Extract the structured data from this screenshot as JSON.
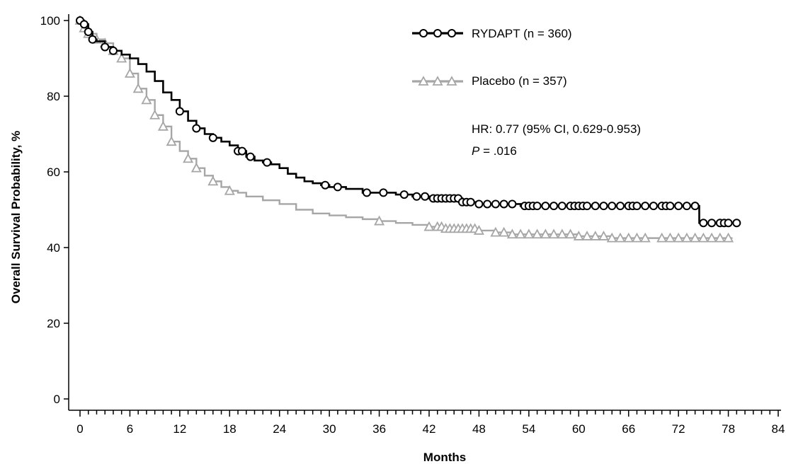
{
  "chart_data": {
    "type": "line",
    "title": "",
    "xlabel": "Months",
    "ylabel": "Overall Survival Probability, %",
    "xlim": [
      0,
      84
    ],
    "ylim": [
      0,
      100
    ],
    "xticks": [
      0,
      6,
      12,
      18,
      24,
      30,
      36,
      42,
      48,
      54,
      60,
      66,
      72,
      78,
      84
    ],
    "yticks": [
      0,
      20,
      40,
      60,
      80,
      100
    ],
    "grid": false,
    "legend_position": "top-right",
    "series": [
      {
        "name": "RYDAPT (n = 360)",
        "color": "#000000",
        "marker": "circle",
        "step_points": [
          [
            0,
            100
          ],
          [
            0.5,
            99
          ],
          [
            1,
            97
          ],
          [
            1.5,
            95
          ],
          [
            2,
            94.5
          ],
          [
            3,
            93
          ],
          [
            4,
            92
          ],
          [
            5,
            91
          ],
          [
            6,
            90
          ],
          [
            7,
            88.5
          ],
          [
            8,
            86.5
          ],
          [
            9,
            84
          ],
          [
            10,
            81
          ],
          [
            11,
            79
          ],
          [
            12,
            76
          ],
          [
            13,
            73.5
          ],
          [
            14,
            71.5
          ],
          [
            15,
            70
          ],
          [
            16,
            69
          ],
          [
            17,
            68
          ],
          [
            18,
            67
          ],
          [
            19,
            65.5
          ],
          [
            20,
            64
          ],
          [
            21,
            63
          ],
          [
            22,
            62.5
          ],
          [
            23,
            62
          ],
          [
            24,
            61
          ],
          [
            25,
            59.5
          ],
          [
            26,
            58.5
          ],
          [
            27,
            57.5
          ],
          [
            28,
            57
          ],
          [
            29,
            56.5
          ],
          [
            30,
            56
          ],
          [
            32,
            55.5
          ],
          [
            34,
            54.5
          ],
          [
            36,
            54.5
          ],
          [
            38,
            54
          ],
          [
            40,
            53.5
          ],
          [
            42,
            53
          ],
          [
            44,
            53
          ],
          [
            46,
            52
          ],
          [
            48,
            51.5
          ],
          [
            50,
            51.5
          ],
          [
            52,
            51.5
          ],
          [
            53,
            51
          ],
          [
            60,
            51
          ],
          [
            70,
            51
          ],
          [
            74.5,
            51
          ],
          [
            74.5,
            46.5
          ],
          [
            79,
            46.5
          ]
        ],
        "censor_x": [
          0,
          0.5,
          1,
          1.5,
          3,
          4,
          12,
          14,
          16,
          19,
          19.5,
          20.5,
          22.5,
          29.5,
          31,
          34.5,
          36.5,
          39,
          40.5,
          41.5,
          42.5,
          43,
          43.5,
          44,
          44.5,
          45,
          45.5,
          46,
          46.5,
          47,
          48,
          49,
          50,
          51,
          52,
          53.5,
          54,
          54.5,
          55,
          56,
          57,
          58,
          59,
          59.5,
          60,
          60.5,
          61,
          62,
          63,
          64,
          65,
          66,
          66.5,
          67,
          68,
          69,
          70,
          70.5,
          71,
          72,
          73,
          74,
          75,
          76,
          77,
          77.5,
          78,
          79
        ]
      },
      {
        "name": "Placebo (n = 357)",
        "color": "#a6a6a6",
        "marker": "triangle",
        "step_points": [
          [
            0,
            100
          ],
          [
            0.5,
            98
          ],
          [
            1,
            96.5
          ],
          [
            2,
            95
          ],
          [
            3,
            94
          ],
          [
            4,
            92
          ],
          [
            5,
            90
          ],
          [
            6,
            86
          ],
          [
            7,
            82
          ],
          [
            8,
            79
          ],
          [
            9,
            75
          ],
          [
            10,
            72
          ],
          [
            11,
            68
          ],
          [
            12,
            65.5
          ],
          [
            13,
            63.5
          ],
          [
            14,
            61
          ],
          [
            15,
            59
          ],
          [
            16,
            57.5
          ],
          [
            17,
            56
          ],
          [
            18,
            55
          ],
          [
            19,
            54.5
          ],
          [
            20,
            53.5
          ],
          [
            22,
            52.5
          ],
          [
            24,
            51.5
          ],
          [
            26,
            50
          ],
          [
            28,
            49
          ],
          [
            30,
            48.5
          ],
          [
            32,
            48
          ],
          [
            34,
            47.5
          ],
          [
            36,
            47
          ],
          [
            38,
            46.5
          ],
          [
            40,
            46
          ],
          [
            42,
            45.5
          ],
          [
            44,
            45
          ],
          [
            48,
            44.5
          ],
          [
            50,
            44
          ],
          [
            52,
            43.5
          ],
          [
            54,
            43.5
          ],
          [
            58,
            43.5
          ],
          [
            60,
            43
          ],
          [
            62,
            43
          ],
          [
            64,
            42.5
          ],
          [
            70,
            42.5
          ],
          [
            78.5,
            42.5
          ]
        ],
        "censor_x": [
          0,
          0.5,
          1,
          2,
          3,
          4,
          5,
          6,
          7,
          8,
          9,
          10,
          11,
          13,
          14,
          16,
          18,
          36,
          42,
          43,
          43.5,
          44,
          44.5,
          45,
          45.5,
          46,
          46.5,
          47,
          47.5,
          48,
          50,
          51,
          52,
          53,
          54,
          55,
          56,
          57,
          58,
          59,
          60,
          61,
          62,
          63,
          64,
          65,
          66,
          67,
          68,
          70,
          71,
          72,
          73,
          74,
          75,
          76,
          77,
          78
        ]
      }
    ],
    "legend": [
      {
        "label": "RYDAPT (n = 360)",
        "color": "#000000",
        "marker": "circle"
      },
      {
        "label": "Placebo (n = 357)",
        "color": "#a6a6a6",
        "marker": "triangle"
      }
    ],
    "annotations": {
      "hr": "HR: 0.77 (95% CI, 0.629-0.953)",
      "p_label": "P",
      "p_value": " = .016"
    }
  }
}
